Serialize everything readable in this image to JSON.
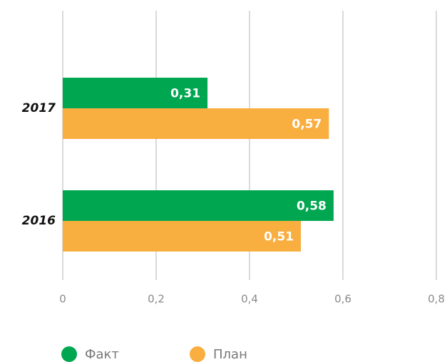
{
  "chart_data": {
    "type": "barh",
    "categories": [
      "2017",
      "2016"
    ],
    "series": [
      {
        "name": "Факт",
        "color": "#00a650",
        "values": [
          0.31,
          0.58
        ],
        "value_labels": [
          "0,31",
          "0,58"
        ]
      },
      {
        "name": "План",
        "color": "#f9ae40",
        "values": [
          0.57,
          0.51
        ],
        "value_labels": [
          "0,57",
          "0,51"
        ]
      }
    ],
    "xlim": [
      0,
      0.8
    ],
    "xticks": [
      0,
      {
        "value": 0.2,
        "label": "0,2"
      },
      {
        "value": 0.4,
        "label": "0,4"
      },
      {
        "value": 0.6,
        "label": "0,6"
      },
      {
        "value": 0.8,
        "label": "0,8"
      }
    ],
    "grid": true
  }
}
